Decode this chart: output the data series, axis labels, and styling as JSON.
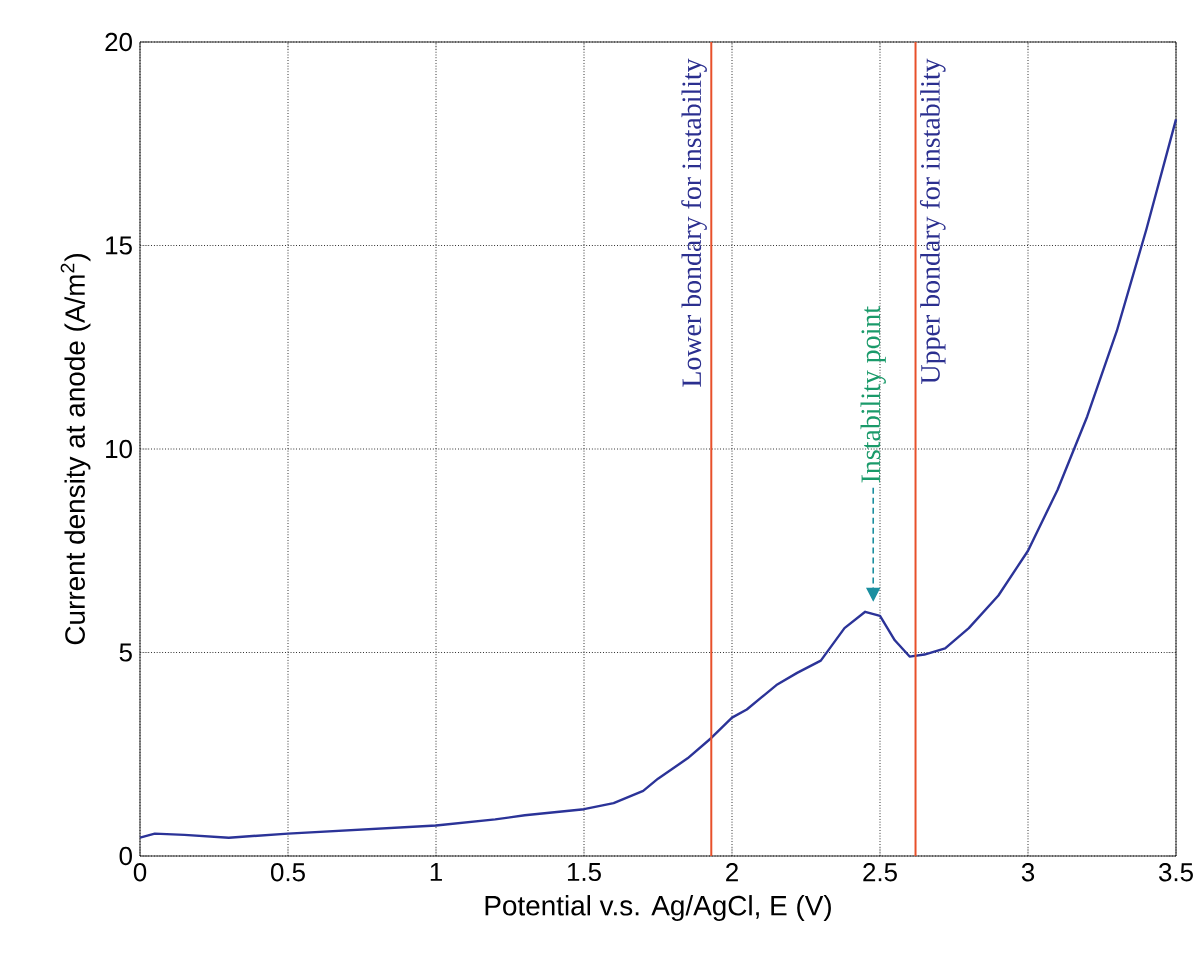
{
  "chart_data": {
    "type": "line",
    "xlabel": "Potential v.s. Ag/AgCl, E (V)",
    "ylabel": "Current density at anode (A/m$^{2}$)",
    "xlim": [
      0,
      3.5
    ],
    "ylim": [
      0,
      20
    ],
    "xticks": [
      0,
      0.5,
      1,
      1.5,
      2,
      2.5,
      3,
      3.5
    ],
    "yticks": [
      0,
      5,
      10,
      15,
      20
    ],
    "grid": true,
    "series": [
      {
        "color": "#2b3398",
        "x": [
          0,
          0.05,
          0.15,
          0.3,
          0.5,
          0.75,
          1.0,
          1.2,
          1.3,
          1.5,
          1.6,
          1.7,
          1.75,
          1.85,
          1.93,
          2.0,
          2.05,
          2.15,
          2.22,
          2.3,
          2.38,
          2.45,
          2.5,
          2.55,
          2.6,
          2.65,
          2.72,
          2.8,
          2.9,
          3.0,
          3.1,
          3.2,
          3.3,
          3.4,
          3.5
        ],
        "values": [
          0.45,
          0.55,
          0.52,
          0.45,
          0.55,
          0.65,
          0.75,
          0.9,
          1.0,
          1.15,
          1.3,
          1.6,
          1.9,
          2.4,
          2.9,
          3.4,
          3.6,
          4.2,
          4.5,
          4.8,
          5.6,
          6.0,
          5.9,
          5.3,
          4.9,
          4.95,
          5.1,
          5.6,
          6.4,
          7.5,
          9.0,
          10.8,
          12.9,
          15.4,
          18.1
        ]
      }
    ],
    "ref_lines": [
      {
        "axis": "x",
        "value": 1.93,
        "label": "Lower bondary for instability",
        "color": "#e8502a"
      },
      {
        "axis": "x",
        "value": 2.62,
        "label": "Upper bondary for instability",
        "color": "#e8502a"
      }
    ],
    "annotations": [
      "Instability point"
    ]
  }
}
